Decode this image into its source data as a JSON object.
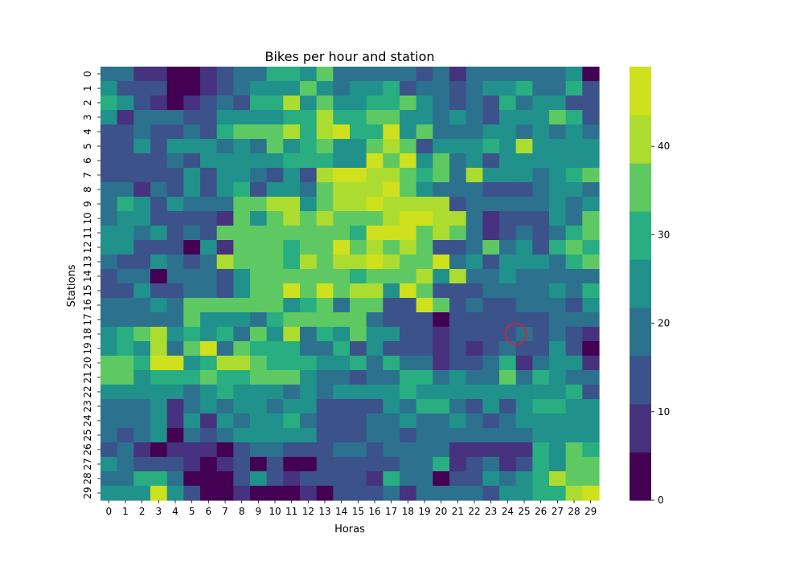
{
  "chart_data": {
    "type": "heatmap",
    "title": "Bikes per hour and station",
    "xlabel": "Horas",
    "ylabel": "Stations",
    "x_categories": [
      "0",
      "1",
      "2",
      "3",
      "4",
      "5",
      "6",
      "7",
      "8",
      "9",
      "10",
      "11",
      "12",
      "13",
      "14",
      "15",
      "16",
      "17",
      "18",
      "19",
      "20",
      "21",
      "22",
      "23",
      "24",
      "25",
      "26",
      "27",
      "28",
      "29"
    ],
    "y_categories": [
      "0",
      "1",
      "2",
      "3",
      "4",
      "5",
      "6",
      "7",
      "8",
      "9",
      "10",
      "11",
      "12",
      "13",
      "14",
      "15",
      "16",
      "17",
      "18",
      "19",
      "20",
      "21",
      "22",
      "23",
      "24",
      "25",
      "26",
      "27",
      "28",
      "29"
    ],
    "colormap": "viridis",
    "vmin": 0,
    "vmax": 49,
    "colorbar_ticks": [
      0,
      10,
      20,
      30,
      40
    ],
    "colorbar_tick_labels": [
      "0",
      "10",
      "20",
      "30",
      "40"
    ],
    "values": [
      [
        18,
        18,
        8,
        8,
        2,
        2,
        6,
        14,
        18,
        18,
        28,
        28,
        24,
        34,
        20,
        20,
        20,
        18,
        18,
        14,
        18,
        10,
        18,
        18,
        20,
        20,
        20,
        20,
        24,
        2
      ],
      [
        24,
        12,
        12,
        14,
        2,
        2,
        10,
        16,
        18,
        24,
        22,
        24,
        38,
        26,
        20,
        22,
        24,
        28,
        12,
        18,
        18,
        12,
        18,
        22,
        22,
        28,
        18,
        18,
        28,
        16
      ],
      [
        28,
        24,
        12,
        10,
        2,
        10,
        14,
        18,
        14,
        28,
        28,
        42,
        26,
        38,
        24,
        24,
        30,
        30,
        34,
        24,
        20,
        14,
        20,
        12,
        28,
        18,
        22,
        22,
        14,
        16
      ],
      [
        22,
        8,
        20,
        20,
        18,
        16,
        16,
        22,
        24,
        24,
        26,
        28,
        30,
        40,
        30,
        32,
        34,
        36,
        26,
        24,
        20,
        24,
        20,
        16,
        22,
        22,
        26,
        36,
        30,
        14
      ],
      [
        16,
        16,
        18,
        12,
        12,
        18,
        14,
        28,
        34,
        34,
        34,
        40,
        30,
        42,
        44,
        30,
        30,
        44,
        26,
        36,
        18,
        18,
        18,
        26,
        26,
        20,
        22,
        20,
        26,
        18
      ],
      [
        12,
        16,
        24,
        12,
        22,
        24,
        24,
        18,
        22,
        18,
        36,
        26,
        30,
        34,
        24,
        26,
        38,
        42,
        34,
        16,
        26,
        26,
        22,
        32,
        24,
        40,
        22,
        22,
        24,
        24
      ],
      [
        12,
        12,
        16,
        12,
        20,
        12,
        24,
        22,
        24,
        24,
        26,
        28,
        28,
        28,
        26,
        26,
        44,
        36,
        46,
        22,
        36,
        18,
        22,
        16,
        24,
        24,
        26,
        26,
        24,
        22
      ],
      [
        16,
        16,
        16,
        16,
        14,
        22,
        14,
        24,
        24,
        18,
        16,
        26,
        16,
        40,
        44,
        44,
        42,
        40,
        36,
        28,
        38,
        20,
        40,
        24,
        24,
        26,
        18,
        22,
        30,
        38
      ],
      [
        18,
        18,
        10,
        20,
        12,
        24,
        12,
        24,
        32,
        14,
        22,
        22,
        18,
        36,
        40,
        40,
        40,
        44,
        38,
        24,
        20,
        18,
        18,
        16,
        16,
        14,
        20,
        22,
        24,
        20
      ],
      [
        20,
        28,
        24,
        16,
        22,
        18,
        18,
        20,
        36,
        34,
        42,
        42,
        26,
        36,
        40,
        40,
        44,
        42,
        42,
        42,
        40,
        16,
        18,
        18,
        18,
        18,
        18,
        24,
        18,
        22
      ],
      [
        18,
        22,
        22,
        12,
        12,
        14,
        12,
        8,
        34,
        26,
        34,
        40,
        36,
        40,
        34,
        34,
        38,
        40,
        44,
        44,
        40,
        40,
        18,
        8,
        12,
        12,
        12,
        24,
        20,
        36
      ],
      [
        22,
        24,
        20,
        24,
        14,
        18,
        14,
        36,
        36,
        36,
        36,
        36,
        36,
        36,
        36,
        30,
        44,
        44,
        44,
        34,
        40,
        38,
        18,
        10,
        16,
        20,
        16,
        18,
        30,
        36
      ],
      [
        22,
        24,
        12,
        16,
        12,
        4,
        22,
        6,
        36,
        36,
        36,
        32,
        36,
        36,
        44,
        36,
        40,
        38,
        40,
        36,
        12,
        12,
        18,
        38,
        18,
        22,
        12,
        28,
        34,
        30
      ],
      [
        20,
        14,
        14,
        22,
        18,
        12,
        18,
        40,
        36,
        36,
        36,
        30,
        40,
        36,
        40,
        40,
        44,
        40,
        38,
        38,
        44,
        18,
        24,
        12,
        22,
        26,
        26,
        20,
        28,
        36
      ],
      [
        16,
        20,
        20,
        4,
        20,
        20,
        20,
        16,
        26,
        38,
        38,
        38,
        38,
        38,
        38,
        30,
        38,
        38,
        36,
        42,
        26,
        42,
        18,
        18,
        22,
        20,
        18,
        20,
        20,
        20
      ],
      [
        14,
        12,
        22,
        12,
        16,
        20,
        20,
        14,
        26,
        36,
        36,
        44,
        34,
        44,
        38,
        42,
        40,
        26,
        44,
        36,
        14,
        16,
        16,
        20,
        20,
        20,
        20,
        26,
        20,
        32
      ],
      [
        18,
        18,
        18,
        26,
        18,
        36,
        36,
        36,
        36,
        36,
        36,
        26,
        30,
        36,
        18,
        36,
        36,
        16,
        16,
        44,
        38,
        16,
        18,
        12,
        16,
        18,
        18,
        18,
        16,
        22
      ],
      [
        18,
        18,
        18,
        18,
        18,
        38,
        24,
        26,
        26,
        20,
        30,
        36,
        36,
        36,
        36,
        36,
        20,
        12,
        12,
        12,
        2,
        14,
        14,
        14,
        14,
        14,
        14,
        20,
        20,
        20
      ],
      [
        22,
        28,
        38,
        42,
        22,
        32,
        22,
        30,
        20,
        36,
        26,
        40,
        20,
        28,
        22,
        34,
        26,
        22,
        14,
        14,
        6,
        16,
        12,
        12,
        12,
        20,
        16,
        18,
        12,
        6
      ],
      [
        22,
        32,
        26,
        40,
        20,
        38,
        48,
        20,
        38,
        28,
        30,
        28,
        18,
        20,
        30,
        14,
        24,
        12,
        16,
        16,
        6,
        12,
        6,
        14,
        18,
        16,
        16,
        22,
        16,
        4
      ],
      [
        38,
        38,
        28,
        44,
        44,
        24,
        32,
        42,
        42,
        36,
        30,
        32,
        30,
        24,
        26,
        30,
        20,
        30,
        20,
        20,
        8,
        16,
        16,
        20,
        28,
        10,
        20,
        24,
        24,
        10
      ],
      [
        34,
        34,
        24,
        32,
        28,
        28,
        36,
        30,
        28,
        36,
        34,
        34,
        22,
        20,
        20,
        14,
        20,
        20,
        28,
        28,
        18,
        22,
        18,
        18,
        38,
        18,
        30,
        22,
        20,
        18
      ],
      [
        24,
        24,
        24,
        24,
        22,
        18,
        24,
        28,
        24,
        24,
        22,
        20,
        26,
        18,
        26,
        26,
        26,
        24,
        30,
        24,
        24,
        24,
        26,
        24,
        22,
        24,
        24,
        24,
        32,
        14
      ],
      [
        20,
        18,
        20,
        26,
        10,
        20,
        24,
        18,
        24,
        24,
        20,
        24,
        26,
        12,
        12,
        12,
        12,
        22,
        20,
        30,
        28,
        20,
        14,
        22,
        12,
        26,
        28,
        32,
        22,
        22
      ],
      [
        18,
        18,
        18,
        22,
        10,
        22,
        10,
        22,
        18,
        22,
        22,
        32,
        20,
        12,
        12,
        12,
        20,
        20,
        26,
        20,
        20,
        22,
        18,
        12,
        20,
        24,
        24,
        24,
        24,
        22
      ],
      [
        18,
        14,
        18,
        22,
        4,
        18,
        16,
        20,
        24,
        22,
        22,
        24,
        22,
        12,
        12,
        12,
        20,
        20,
        14,
        20,
        20,
        20,
        20,
        20,
        20,
        20,
        24,
        24,
        26,
        22
      ],
      [
        16,
        20,
        10,
        4,
        10,
        10,
        10,
        4,
        16,
        20,
        20,
        14,
        14,
        14,
        20,
        20,
        16,
        20,
        20,
        20,
        20,
        8,
        10,
        10,
        10,
        10,
        30,
        22,
        36,
        30
      ],
      [
        22,
        20,
        12,
        14,
        16,
        10,
        4,
        10,
        12,
        4,
        12,
        4,
        4,
        12,
        12,
        12,
        12,
        12,
        20,
        20,
        28,
        10,
        14,
        20,
        6,
        16,
        30,
        22,
        38,
        36
      ],
      [
        20,
        20,
        28,
        28,
        20,
        4,
        4,
        4,
        12,
        22,
        12,
        8,
        12,
        12,
        12,
        16,
        6,
        28,
        20,
        20,
        2,
        16,
        16,
        22,
        20,
        24,
        28,
        42,
        36,
        36
      ],
      [
        26,
        22,
        22,
        46,
        22,
        12,
        4,
        4,
        10,
        4,
        4,
        4,
        8,
        4,
        12,
        12,
        14,
        18,
        10,
        20,
        20,
        20,
        18,
        16,
        22,
        26,
        28,
        32,
        42,
        46
      ]
    ],
    "annotations": [
      {
        "type": "circle",
        "x": 24.5,
        "y": 18.0,
        "color": "#e0202a"
      }
    ]
  }
}
